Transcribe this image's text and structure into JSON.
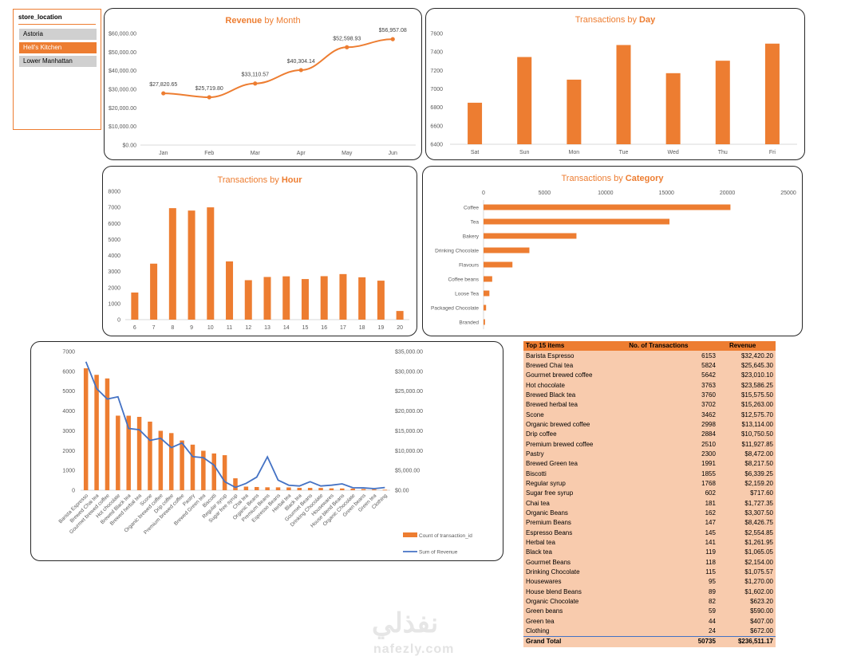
{
  "slicer": {
    "title": "store_location",
    "items": [
      {
        "label": "Astoria",
        "selected": false
      },
      {
        "label": "Hell's Kitchen",
        "selected": true
      },
      {
        "label": "Lower Manhattan",
        "selected": false
      }
    ]
  },
  "colors": {
    "accent": "#ED7D31",
    "line_blue": "#4472C4",
    "table_fill": "#F8CBAD"
  },
  "charts": {
    "revenue_month": {
      "title_plain": "Revenue",
      "title_rest": " by Month",
      "chart_data": {
        "type": "line",
        "categories": [
          "Jan",
          "Feb",
          "Mar",
          "Apr",
          "May",
          "Jun"
        ],
        "values": [
          27820.65,
          25719.8,
          33110.57,
          40304.14,
          52598.93,
          56957.08
        ],
        "data_labels": [
          "$27,820.65",
          "$25,719.80",
          "$33,110.57",
          "$40,304.14",
          "$52,598.93",
          "$56,957.08"
        ],
        "ylim": [
          0,
          60000
        ],
        "y_ticks": [
          "$0.00",
          "$10,000.00",
          "$20,000.00",
          "$30,000.00",
          "$40,000.00",
          "$50,000.00",
          "$60,000.00"
        ]
      }
    },
    "transactions_day": {
      "title_plain": "Transactions by ",
      "title_bold": "Day",
      "chart_data": {
        "type": "bar",
        "categories": [
          "Sat",
          "Sun",
          "Mon",
          "Tue",
          "Wed",
          "Thu",
          "Fri"
        ],
        "values": [
          6850,
          7345,
          7100,
          7475,
          7170,
          7305,
          7490
        ],
        "ylim": [
          6400,
          7600
        ],
        "y_ticks": [
          "6400",
          "6600",
          "6800",
          "7000",
          "7200",
          "7400",
          "7600"
        ]
      }
    },
    "transactions_hour": {
      "title_plain": "Transactions by ",
      "title_bold": "Hour",
      "chart_data": {
        "type": "bar",
        "categories": [
          "6",
          "7",
          "8",
          "9",
          "10",
          "11",
          "12",
          "13",
          "14",
          "15",
          "16",
          "17",
          "18",
          "19",
          "20"
        ],
        "values": [
          1690,
          3490,
          6950,
          6800,
          7000,
          3630,
          2460,
          2660,
          2700,
          2530,
          2710,
          2840,
          2640,
          2430,
          540
        ],
        "ylim": [
          0,
          8000
        ],
        "y_ticks": [
          "0",
          "1000",
          "2000",
          "3000",
          "4000",
          "5000",
          "6000",
          "7000",
          "8000"
        ]
      }
    },
    "transactions_category": {
      "title_plain": "Transactions by ",
      "title_bold": "Category",
      "chart_data": {
        "type": "bar",
        "orientation": "horizontal",
        "categories": [
          "Coffee",
          "Tea",
          "Bakery",
          "Drinking Chocolate",
          "Flavours",
          "Coffee beans",
          "Loose Tea",
          "Packaged Chocolate",
          "Branded"
        ],
        "values": [
          20250,
          15250,
          7620,
          3760,
          2370,
          710,
          480,
          210,
          120
        ],
        "xlim": [
          0,
          25000
        ],
        "x_ticks": [
          "0",
          "5000",
          "10000",
          "15000",
          "20000",
          "25000"
        ]
      }
    },
    "combo": {
      "chart_data": {
        "type": "bar",
        "categories": [
          "Barista Espresso",
          "Brewed Chai tea",
          "Gourmet brewed coffee",
          "Hot chocolate",
          "Brewed Black tea",
          "Brewed herbal tea",
          "Scone",
          "Organic brewed coffee",
          "Drip coffee",
          "Premium brewed coffee",
          "Pastry",
          "Brewed Green tea",
          "Biscotti",
          "Regular syrup",
          "Sugar free syrup",
          "Chai tea",
          "Organic Beans",
          "Premium Beans",
          "Espresso Beans",
          "Herbal tea",
          "Black tea",
          "Gourmet Beans",
          "Drinking Chocolate",
          "Housewares",
          "House blend Beans",
          "Organic Chocolate",
          "Green beans",
          "Green tea",
          "Clothing"
        ],
        "series": [
          {
            "name": "Count of transaction_id",
            "axis": "left",
            "values": [
              6153,
              5824,
              5642,
              3763,
              3760,
              3702,
              3462,
              2998,
              2884,
              2510,
              2300,
              1991,
              1855,
              1768,
              602,
              181,
              162,
              147,
              145,
              141,
              119,
              118,
              115,
              95,
              89,
              82,
              59,
              44,
              24
            ]
          },
          {
            "name": "Sum of Revenue",
            "axis": "right",
            "values": [
              32420.2,
              25645.3,
              23010.1,
              23586.25,
              15575.5,
              15263.0,
              12575.7,
              13114.0,
              10750.5,
              11927.85,
              8472.0,
              8217.5,
              6339.25,
              2159.2,
              717.6,
              1727.35,
              3307.5,
              8426.75,
              2554.85,
              1261.95,
              1065.05,
              2154.0,
              1075.57,
              1270.0,
              1602.0,
              623.2,
              590.0,
              407.0,
              672.0
            ]
          }
        ],
        "ylim": [
          0,
          7000
        ],
        "y_ticks": [
          "0",
          "1000",
          "2000",
          "3000",
          "4000",
          "5000",
          "6000",
          "7000"
        ],
        "y2lim": [
          0,
          35000
        ],
        "y2_ticks": [
          "$0.00",
          "$5,000.00",
          "$10,000.00",
          "$15,000.00",
          "$20,000.00",
          "$25,000.00",
          "$30,000.00",
          "$35,000.00"
        ]
      }
    }
  },
  "table": {
    "headers": [
      "Top 15 items",
      "No. of Transactions",
      "Revenue"
    ],
    "rows": [
      [
        "Barista Espresso",
        "6153",
        "$32,420.20"
      ],
      [
        "Brewed Chai tea",
        "5824",
        "$25,645.30"
      ],
      [
        "Gourmet brewed coffee",
        "5642",
        "$23,010.10"
      ],
      [
        "Hot chocolate",
        "3763",
        "$23,586.25"
      ],
      [
        "Brewed Black tea",
        "3760",
        "$15,575.50"
      ],
      [
        "Brewed herbal tea",
        "3702",
        "$15,263.00"
      ],
      [
        "Scone",
        "3462",
        "$12,575.70"
      ],
      [
        "Organic brewed coffee",
        "2998",
        "$13,114.00"
      ],
      [
        "Drip coffee",
        "2884",
        "$10,750.50"
      ],
      [
        "Premium brewed coffee",
        "2510",
        "$11,927.85"
      ],
      [
        "Pastry",
        "2300",
        "$8,472.00"
      ],
      [
        "Brewed Green tea",
        "1991",
        "$8,217.50"
      ],
      [
        "Biscotti",
        "1855",
        "$6,339.25"
      ],
      [
        "Regular syrup",
        "1768",
        "$2,159.20"
      ],
      [
        "Sugar free syrup",
        "602",
        "$717.60"
      ],
      [
        "Chai tea",
        "181",
        "$1,727.35"
      ],
      [
        "Organic Beans",
        "162",
        "$3,307.50"
      ],
      [
        "Premium Beans",
        "147",
        "$8,426.75"
      ],
      [
        "Espresso Beans",
        "145",
        "$2,554.85"
      ],
      [
        "Herbal tea",
        "141",
        "$1,261.95"
      ],
      [
        "Black tea",
        "119",
        "$1,065.05"
      ],
      [
        "Gourmet Beans",
        "118",
        "$2,154.00"
      ],
      [
        "Drinking Chocolate",
        "115",
        "$1,075.57"
      ],
      [
        "Housewares",
        "95",
        "$1,270.00"
      ],
      [
        "House blend Beans",
        "89",
        "$1,602.00"
      ],
      [
        "Organic Chocolate",
        "82",
        "$623.20"
      ],
      [
        "Green beans",
        "59",
        "$590.00"
      ],
      [
        "Green tea",
        "44",
        "$407.00"
      ],
      [
        "Clothing",
        "24",
        "$672.00"
      ]
    ],
    "total": [
      "Grand Total",
      "50735",
      "$236,511.17"
    ]
  },
  "watermark": {
    "arabic": "نفذلي",
    "latin": "nafezly.com"
  }
}
